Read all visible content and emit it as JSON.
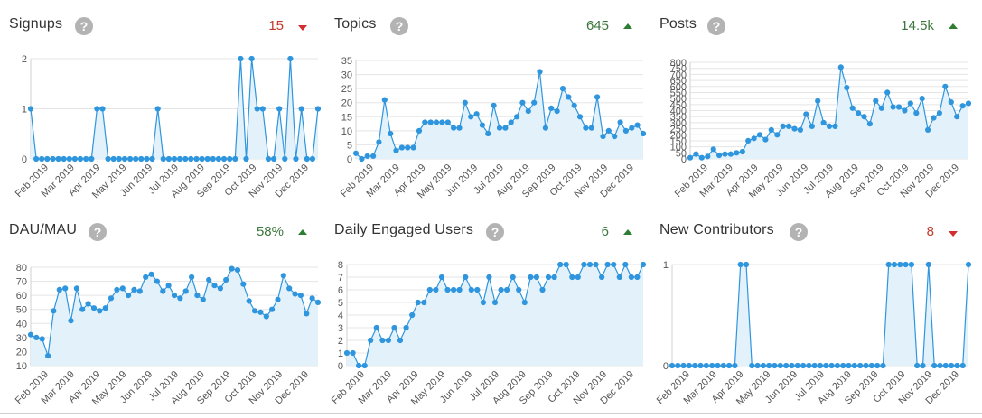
{
  "help_glyph": "?",
  "colors": {
    "line": "#2f96de",
    "fill": "#e3f1fb",
    "grid": "#e5e5e5",
    "up": "#2e7d32",
    "down": "#d32f2f"
  },
  "panels": [
    {
      "title": "Signups",
      "value": "15",
      "trend": "down"
    },
    {
      "title": "Topics",
      "value": "645",
      "trend": "up"
    },
    {
      "title": "Posts",
      "value": "14.5k",
      "trend": "up"
    },
    {
      "title": "DAU/MAU",
      "value": "58%",
      "trend": "up"
    },
    {
      "title": "Daily Engaged Users",
      "value": "6",
      "trend": "up"
    },
    {
      "title": "New Contributors",
      "value": "8",
      "trend": "down"
    }
  ],
  "chart_data": [
    {
      "type": "area",
      "title": "Signups",
      "y_ticks": [
        "0",
        "1",
        "2"
      ],
      "ylim": [
        0,
        2
      ],
      "x_ticks": [
        "Feb 2019",
        "Mar 2019",
        "Apr 2019",
        "May 2019",
        "Jun 2019",
        "Jul 2019",
        "Aug 2019",
        "Sep 2019",
        "Oct 2019",
        "Nov 2019",
        "Dec 2019"
      ],
      "series": [
        {
          "values": [
            1,
            0,
            0,
            0,
            0,
            0,
            0,
            0,
            0,
            0,
            0,
            0,
            1,
            1,
            0,
            0,
            0,
            0,
            0,
            0,
            0,
            0,
            0,
            1,
            0,
            0,
            0,
            0,
            0,
            0,
            0,
            0,
            0,
            0,
            0,
            0,
            0,
            0,
            2,
            0,
            2,
            1,
            1,
            0,
            0,
            1,
            0,
            2,
            0,
            1,
            0,
            0,
            1
          ]
        }
      ]
    },
    {
      "type": "area",
      "title": "Topics",
      "y_ticks": [
        "0",
        "5",
        "10",
        "15",
        "20",
        "25",
        "30",
        "35"
      ],
      "ylim": [
        0,
        35
      ],
      "x_ticks": [
        "Feb 2019",
        "Mar 2019",
        "Apr 2019",
        "May 2019",
        "Jun 2019",
        "Jul 2019",
        "Aug 2019",
        "Sep 2019",
        "Oct 2019",
        "Nov 2019",
        "Dec 2019"
      ],
      "series": [
        {
          "values": [
            2,
            0,
            1,
            1,
            6,
            21,
            9,
            3,
            4,
            4,
            4,
            10,
            13,
            13,
            13,
            13,
            13,
            11,
            11,
            20,
            15,
            16,
            12,
            9,
            19,
            11,
            11,
            13,
            15,
            20,
            17,
            20,
            31,
            11,
            18,
            17,
            25,
            22,
            19,
            15,
            11,
            11,
            22,
            8,
            10,
            8,
            13,
            10,
            11,
            12,
            9
          ]
        }
      ]
    },
    {
      "type": "area",
      "title": "Posts",
      "y_ticks": [
        "0",
        "50",
        "100",
        "150",
        "200",
        "250",
        "300",
        "350",
        "400",
        "450",
        "500",
        "550",
        "600",
        "650",
        "700",
        "750",
        "800"
      ],
      "ylim": [
        0,
        800
      ],
      "x_ticks": [
        "Feb 2019",
        "Mar 2019",
        "Apr 2019",
        "May 2019",
        "Jun 2019",
        "Jul 2019",
        "Aug 2019",
        "Sep 2019",
        "Oct 2019",
        "Nov 2019",
        "Dec 2019"
      ],
      "series": [
        {
          "values": [
            10,
            40,
            10,
            20,
            80,
            30,
            40,
            40,
            50,
            60,
            150,
            170,
            200,
            160,
            240,
            200,
            270,
            270,
            250,
            240,
            370,
            270,
            480,
            300,
            270,
            270,
            760,
            590,
            420,
            380,
            350,
            290,
            480,
            420,
            550,
            430,
            430,
            400,
            460,
            380,
            500,
            240,
            340,
            380,
            600,
            470,
            350,
            440,
            460
          ]
        }
      ]
    },
    {
      "type": "area",
      "title": "DAU/MAU",
      "y_ticks": [
        "10",
        "20",
        "30",
        "40",
        "50",
        "60",
        "70",
        "80"
      ],
      "ylim": [
        10,
        80
      ],
      "x_ticks": [
        "Feb 2019",
        "Mar 2019",
        "Apr 2019",
        "May 2019",
        "Jun 2019",
        "Jul 2019",
        "Aug 2019",
        "Sep 2019",
        "Oct 2019",
        "Nov 2019",
        "Dec 2019"
      ],
      "series": [
        {
          "values": [
            32,
            30,
            29,
            17,
            49,
            64,
            65,
            42,
            65,
            50,
            54,
            51,
            49,
            51,
            58,
            64,
            65,
            60,
            64,
            63,
            73,
            75,
            70,
            63,
            67,
            60,
            58,
            63,
            73,
            60,
            57,
            71,
            67,
            65,
            71,
            79,
            78,
            68,
            56,
            49,
            48,
            45,
            50,
            57,
            74,
            65,
            61,
            60,
            47,
            58,
            55
          ]
        }
      ]
    },
    {
      "type": "area",
      "title": "Daily Engaged Users",
      "y_ticks": [
        "0",
        "1",
        "2",
        "3",
        "4",
        "5",
        "6",
        "7",
        "8"
      ],
      "ylim": [
        0,
        8
      ],
      "x_ticks": [
        "Feb 2019",
        "Mar 2019",
        "Apr 2019",
        "May 2019",
        "Jun 2019",
        "Jul 2019",
        "Aug 2019",
        "Sep 2019",
        "Oct 2019",
        "Nov 2019",
        "Dec 2019"
      ],
      "series": [
        {
          "values": [
            1,
            1,
            0,
            0,
            2,
            3,
            2,
            2,
            3,
            2,
            3,
            4,
            5,
            5,
            6,
            6,
            7,
            6,
            6,
            6,
            7,
            6,
            6,
            5,
            7,
            5,
            6,
            6,
            7,
            6,
            5,
            7,
            7,
            6,
            7,
            7,
            8,
            8,
            7,
            7,
            8,
            8,
            8,
            7,
            8,
            8,
            7,
            8,
            7,
            7,
            8
          ]
        }
      ]
    },
    {
      "type": "area",
      "title": "New Contributors",
      "y_ticks": [
        "0",
        "1"
      ],
      "ylim": [
        0,
        1
      ],
      "x_ticks": [
        "Feb 2019",
        "Mar 2019",
        "Apr 2019",
        "May 2019",
        "Jun 2019",
        "Jul 2019",
        "Aug 2019",
        "Sep 2019",
        "Oct 2019",
        "Nov 2019",
        "Dec 2019"
      ],
      "series": [
        {
          "values": [
            0,
            0,
            0,
            0,
            0,
            0,
            0,
            0,
            0,
            0,
            0,
            0,
            1,
            1,
            0,
            0,
            0,
            0,
            0,
            0,
            0,
            0,
            0,
            0,
            0,
            0,
            0,
            0,
            0,
            0,
            0,
            0,
            0,
            0,
            0,
            0,
            0,
            0,
            1,
            1,
            1,
            1,
            1,
            0,
            0,
            1,
            0,
            0,
            0,
            0,
            0,
            0,
            1
          ]
        }
      ]
    }
  ]
}
